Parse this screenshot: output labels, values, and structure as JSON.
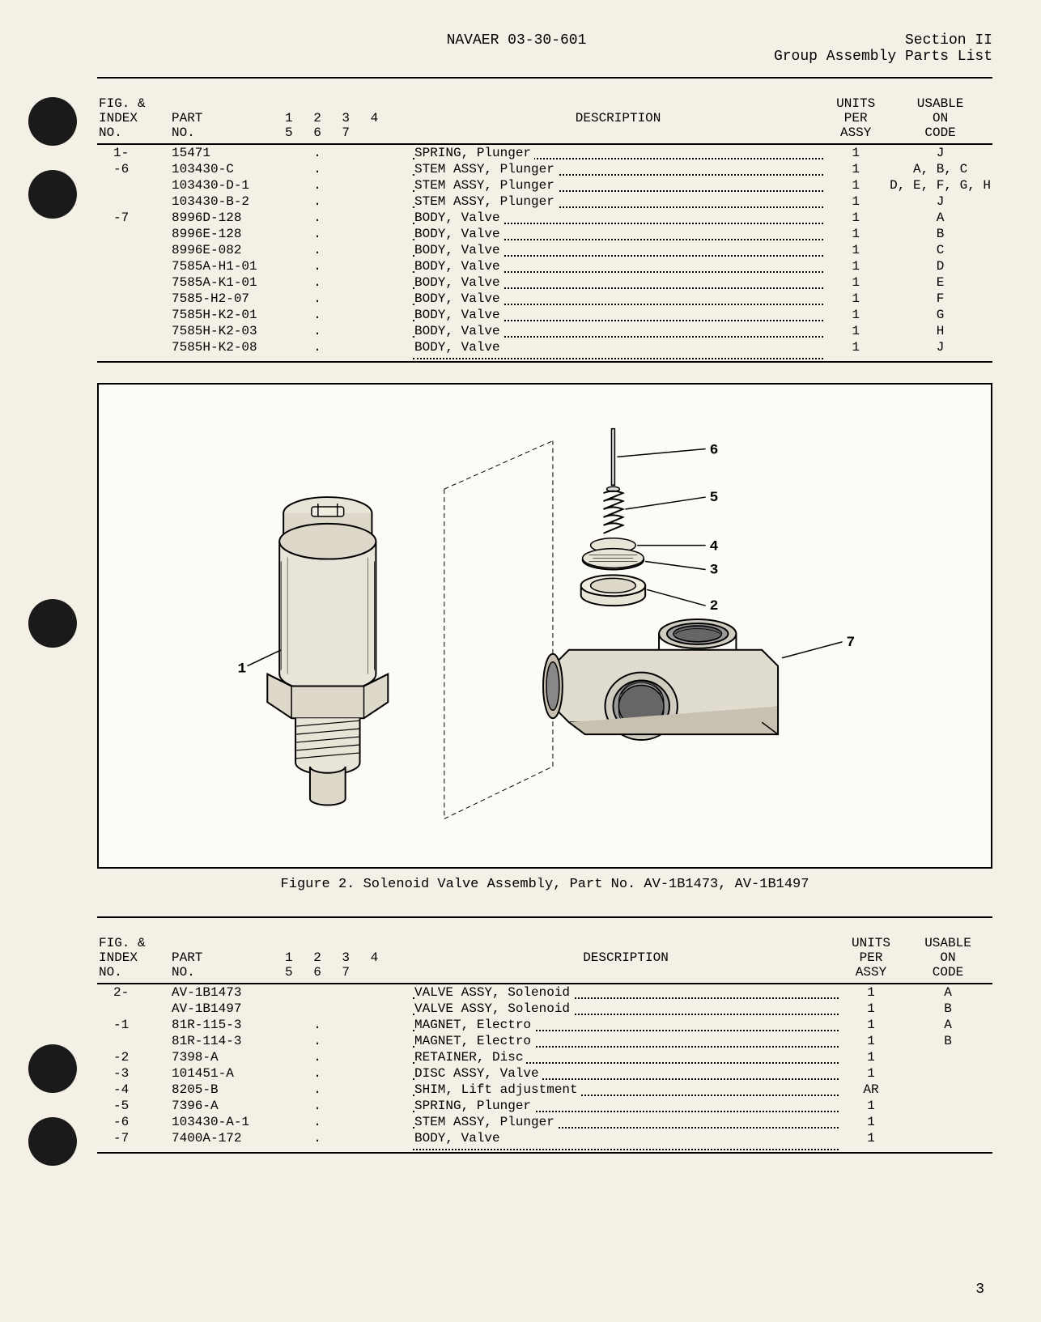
{
  "header": {
    "doc_number": "NAVAER 03-30-601",
    "section": "Section II",
    "section_title": "Group Assembly Parts List"
  },
  "table1": {
    "headers": {
      "col1_line1": "FIG. &",
      "col1_line2": "INDEX",
      "col1_line3": "NO.",
      "col2_line1": "PART",
      "col2_line2": "NO.",
      "col3": "1  2  3  4  5  6  7",
      "col4": "DESCRIPTION",
      "col5_line1": "UNITS",
      "col5_line2": "PER",
      "col5_line3": "ASSY",
      "col6_line1": "USABLE",
      "col6_line2": "ON",
      "col6_line3": "CODE"
    },
    "rows": [
      {
        "index": "1-",
        "part": "15471",
        "indent": ".",
        "desc": "SPRING, Plunger",
        "units": "1",
        "code": "J"
      },
      {
        "index": "-6",
        "part": "103430-C",
        "indent": ".",
        "desc": "STEM ASSY, Plunger",
        "units": "1",
        "code": "A, B, C"
      },
      {
        "index": "",
        "part": "103430-D-1",
        "indent": ".",
        "desc": "STEM ASSY, Plunger",
        "units": "1",
        "code": "D, E, F, G, H"
      },
      {
        "index": "",
        "part": "103430-B-2",
        "indent": ".",
        "desc": "STEM ASSY, Plunger",
        "units": "1",
        "code": "J"
      },
      {
        "index": "-7",
        "part": "8996D-128",
        "indent": ".",
        "desc": "BODY, Valve",
        "units": "1",
        "code": "A"
      },
      {
        "index": "",
        "part": "8996E-128",
        "indent": ".",
        "desc": "BODY, Valve",
        "units": "1",
        "code": "B"
      },
      {
        "index": "",
        "part": "8996E-082",
        "indent": ".",
        "desc": "BODY, Valve",
        "units": "1",
        "code": "C"
      },
      {
        "index": "",
        "part": "7585A-H1-01",
        "indent": ".",
        "desc": "BODY, Valve",
        "units": "1",
        "code": "D"
      },
      {
        "index": "",
        "part": "7585A-K1-01",
        "indent": ".",
        "desc": "BODY, Valve",
        "units": "1",
        "code": "E"
      },
      {
        "index": "",
        "part": "7585-H2-07",
        "indent": ".",
        "desc": "BODY, Valve",
        "units": "1",
        "code": "F"
      },
      {
        "index": "",
        "part": "7585H-K2-01",
        "indent": ".",
        "desc": "BODY, Valve",
        "units": "1",
        "code": "G"
      },
      {
        "index": "",
        "part": "7585H-K2-03",
        "indent": ".",
        "desc": "BODY, Valve",
        "units": "1",
        "code": "H"
      },
      {
        "index": "",
        "part": "7585H-K2-08",
        "indent": ".",
        "desc": "BODY, Valve",
        "units": "1",
        "code": "J"
      }
    ]
  },
  "figure": {
    "caption": "Figure 2.  Solenoid Valve Assembly, Part No. AV-1B1473, AV-1B1497",
    "callouts": {
      "c1": "1",
      "c2": "2",
      "c3": "3",
      "c4": "4",
      "c5": "5",
      "c6": "6",
      "c7": "7"
    }
  },
  "table2": {
    "rows": [
      {
        "index": "2-",
        "part": "AV-1B1473",
        "indent": "",
        "desc": "VALVE ASSY, Solenoid",
        "units": "1",
        "code": "A"
      },
      {
        "index": "",
        "part": "AV-1B1497",
        "indent": "",
        "desc": "VALVE ASSY, Solenoid",
        "units": "1",
        "code": "B"
      },
      {
        "index": "-1",
        "part": "81R-115-3",
        "indent": ".",
        "desc": "MAGNET, Electro",
        "units": "1",
        "code": "A"
      },
      {
        "index": "",
        "part": "81R-114-3",
        "indent": ".",
        "desc": "MAGNET, Electro",
        "units": "1",
        "code": "B"
      },
      {
        "index": "-2",
        "part": "7398-A",
        "indent": ".",
        "desc": "RETAINER, Disc",
        "units": "1",
        "code": ""
      },
      {
        "index": "-3",
        "part": "101451-A",
        "indent": ".",
        "desc": "DISC ASSY, Valve",
        "units": "1",
        "code": ""
      },
      {
        "index": "-4",
        "part": "8205-B",
        "indent": ".",
        "desc": "SHIM, Lift adjustment",
        "units": "AR",
        "code": ""
      },
      {
        "index": "-5",
        "part": "7396-A",
        "indent": ".",
        "desc": "SPRING, Plunger",
        "units": "1",
        "code": ""
      },
      {
        "index": "-6",
        "part": "103430-A-1",
        "indent": ".",
        "desc": "STEM ASSY, Plunger",
        "units": "1",
        "code": ""
      },
      {
        "index": "-7",
        "part": "7400A-172",
        "indent": ".",
        "desc": "BODY, Valve",
        "units": "1",
        "code": ""
      }
    ]
  },
  "page_number": "3"
}
